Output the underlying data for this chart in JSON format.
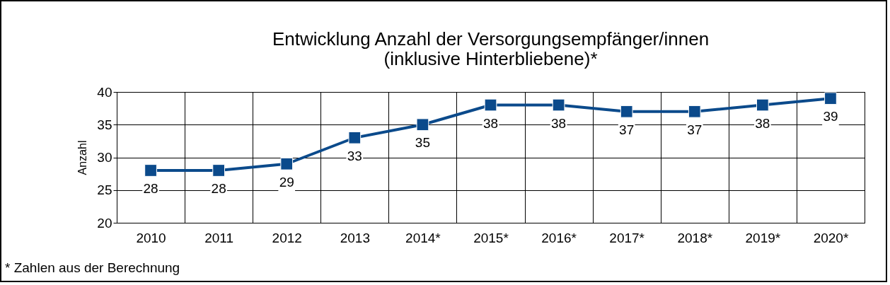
{
  "chart_data": {
    "type": "line",
    "title": [
      "Entwicklung Anzahl der Versorgungsempfänger/innen",
      "(inklusive Hinterbliebene)*"
    ],
    "ylabel": "Anzahl",
    "categories": [
      "2010",
      "2011",
      "2012",
      "2013",
      "2014*",
      "2015*",
      "2016*",
      "2017*",
      "2018*",
      "2019*",
      "2020*"
    ],
    "series": [
      {
        "color": "#0b4a8b",
        "values": [
          28,
          28,
          29,
          33,
          35,
          38,
          38,
          37,
          37,
          38,
          39
        ]
      }
    ],
    "marker": "square",
    "data_labels": true,
    "grid": true,
    "legend": false,
    "ylim": [
      20,
      40
    ],
    "yticks": [
      20,
      25,
      30,
      35,
      40
    ],
    "annotations": [
      "* Zahlen aus der Berechnung"
    ]
  }
}
